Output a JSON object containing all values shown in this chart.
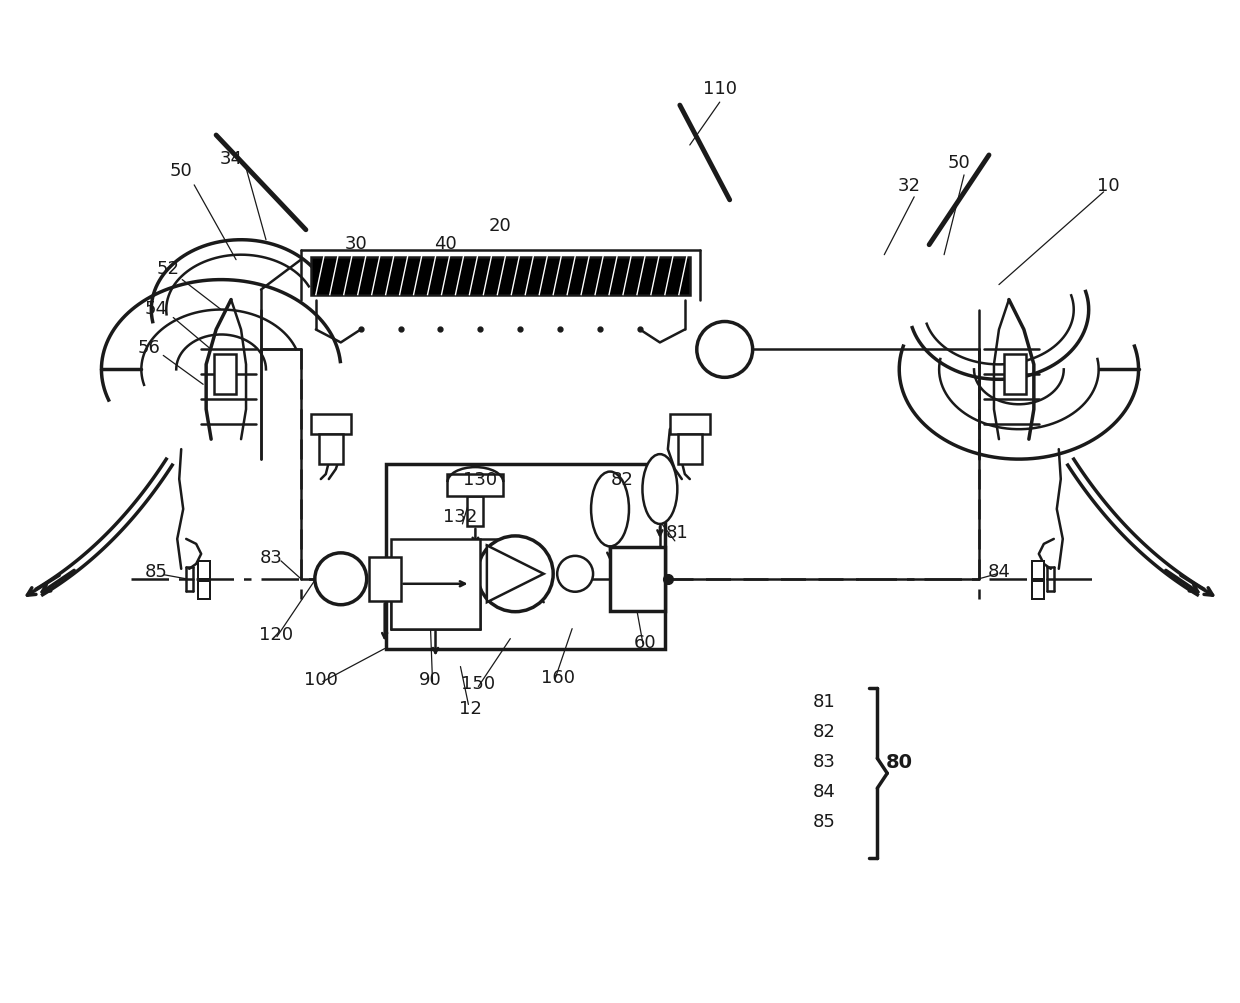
{
  "bg_color": "#ffffff",
  "line_color": "#1a1a1a",
  "fig_width": 12.4,
  "fig_height": 10.04,
  "dpi": 100
}
